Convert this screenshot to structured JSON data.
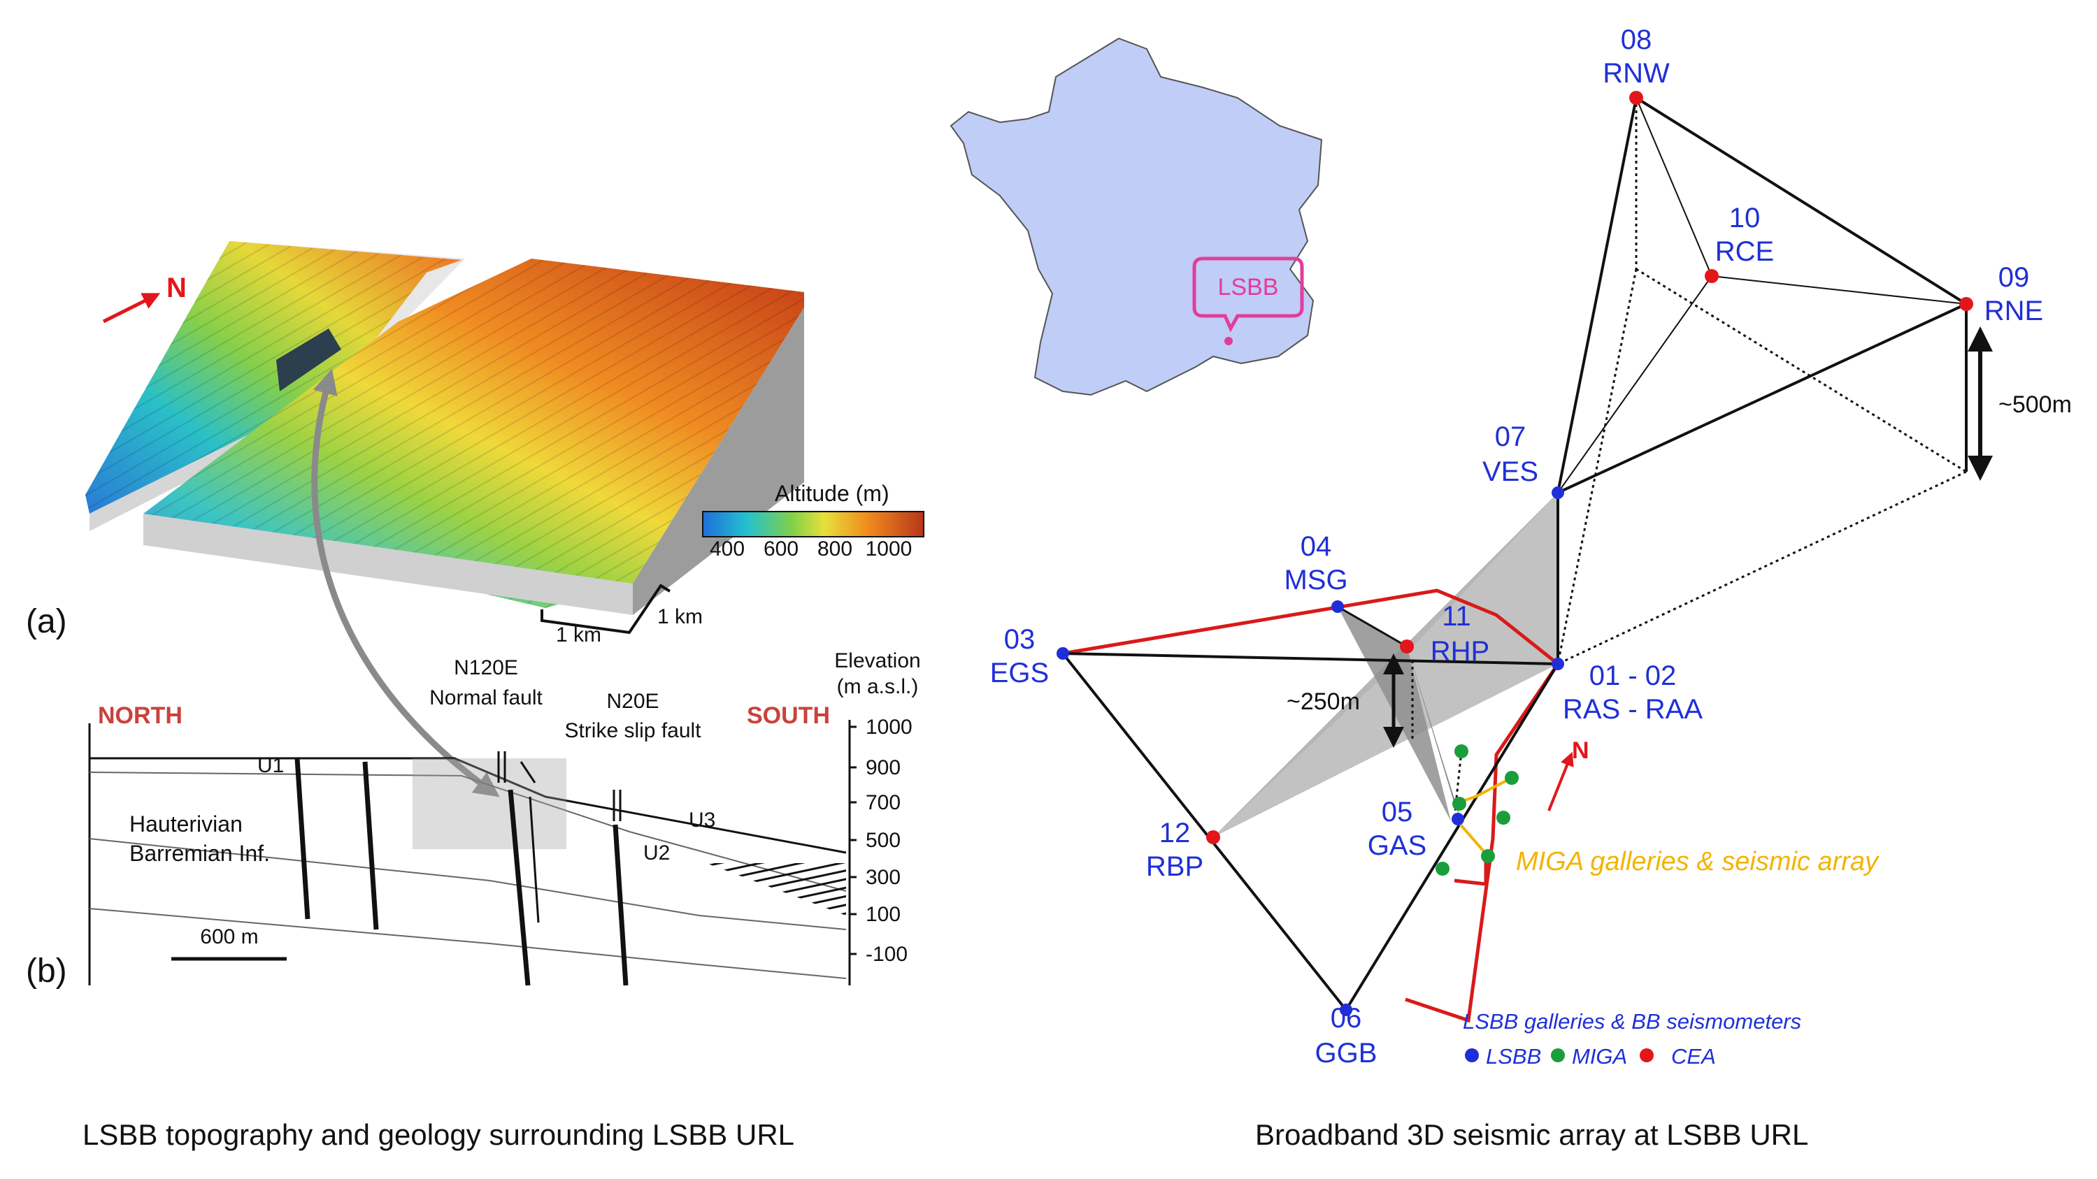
{
  "left_panel": {
    "caption": "LSBB topography and geology surrounding LSBB URL",
    "north_arrow_label": "N",
    "legend": {
      "title": "Altitude (m)",
      "ticks": [
        "400",
        "600",
        "800",
        "1000"
      ]
    },
    "scale_labels": [
      "1 km",
      "1 km"
    ],
    "panel_a_label": "(a)",
    "panel_b_label": "(b)",
    "section": {
      "north_label": "NORTH",
      "south_label": "SOUTH",
      "fault1_line1": "N120E",
      "fault1_line2": "Normal fault",
      "fault2_line1": "N20E",
      "fault2_line2": "Strike slip fault",
      "elevation_line1": "Elevation",
      "elevation_line2": "(m a.s.l.)",
      "elevation_ticks": [
        "1000",
        "900",
        "700",
        "500",
        "300",
        "100",
        "-100"
      ],
      "unit_labels": [
        "U1",
        "U2",
        "U3"
      ],
      "formation_line1": "Hauterivian",
      "formation_line2": "Barremian Inf.",
      "scalebar_label": "600 m"
    }
  },
  "right_panel": {
    "caption": "Broadband 3D seismic array at LSBB URL",
    "map_label": "LSBB",
    "stations": [
      {
        "num": "08",
        "code": "RNW"
      },
      {
        "num": "10",
        "code": "RCE"
      },
      {
        "num": "09",
        "code": "RNE"
      },
      {
        "num": "07",
        "code": "VES"
      },
      {
        "num": "04",
        "code": "MSG"
      },
      {
        "num": "11",
        "code": "RHP"
      },
      {
        "num": "03",
        "code": "EGS"
      },
      {
        "num": "01 - 02",
        "code": "RAS - RAA"
      },
      {
        "num": "12",
        "code": "RBP"
      },
      {
        "num": "05",
        "code": "GAS"
      },
      {
        "num": "06",
        "code": "GGB"
      }
    ],
    "dim_500": "~500m",
    "dim_250": "~250m",
    "north_label": "N",
    "miga_label": "MIGA galleries & seismic array",
    "legend": {
      "title": "LSBB galleries & BB seismometers",
      "items": [
        {
          "label": "LSBB",
          "color": "#1f2fd8"
        },
        {
          "label": "MIGA",
          "color": "#1a9e3c"
        },
        {
          "label": "CEA",
          "color": "#e3161b"
        }
      ]
    },
    "colors": {
      "station_blue": "#1f2fd8",
      "station_red": "#e3161b",
      "miga_green": "#1a9e3c",
      "gallery_red": "#d91a1a",
      "miga_orange": "#f2b400",
      "map_fill": "#c0cdf6",
      "map_marker": "#e23d9a"
    }
  }
}
